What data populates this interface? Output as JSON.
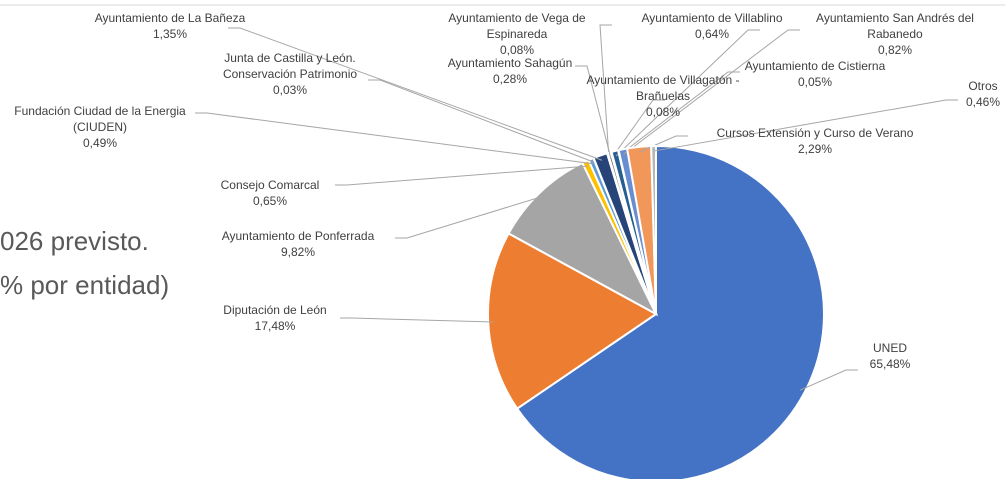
{
  "chart_data": {
    "type": "pie",
    "title_lines": [
      "026 previsto.",
      "% por entidad)"
    ],
    "categories": [
      "UNED",
      "Diputación de León",
      "Ayuntamiento de Ponferrada",
      "Consejo Comarcal",
      "Fundación Ciudad de la Energia (CIUDEN)",
      "Junta de Castilla y León. Conservación Patrimonio",
      "Ayuntamiento de La Bañeza",
      "Ayuntamiento de Vega de Espinareda",
      "Ayuntamiento Sahagún",
      "Ayuntamiento de Villagatón - Brañuelas",
      "Ayuntamiento de Villablino",
      "Ayuntamiento de Cistierna",
      "Ayuntamiento San Andrés del Rabanedo",
      "Cursos Extensión y Curso de Verano",
      "Otros"
    ],
    "values": [
      65.48,
      17.48,
      9.82,
      0.65,
      0.49,
      0.03,
      1.35,
      0.08,
      0.28,
      0.08,
      0.64,
      0.05,
      0.82,
      2.29,
      0.46
    ],
    "value_labels": [
      "65,48%",
      "17,48%",
      "9,82%",
      "0,65%",
      "0,49%",
      "0,03%",
      "1,35%",
      "0,08%",
      "0,28%",
      "0,08%",
      "0,64%",
      "0,05%",
      "0,82%",
      "2,29%",
      "0,46%"
    ],
    "colors": [
      "#4472c4",
      "#ed7d31",
      "#a5a5a5",
      "#ffc000",
      "#5b9bd5",
      "#70ad47",
      "#264478",
      "#9e480e",
      "#636363",
      "#997300",
      "#255e91",
      "#43682b",
      "#698ed0",
      "#f1975a",
      "#b7b7b7"
    ]
  }
}
